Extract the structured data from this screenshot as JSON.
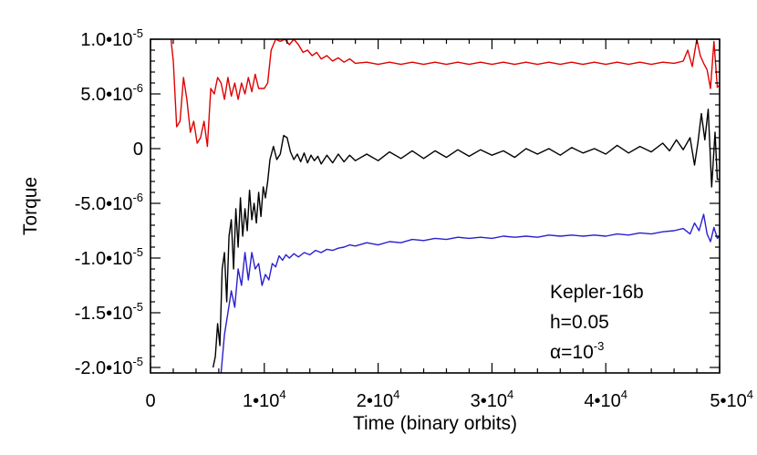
{
  "chart_data": {
    "type": "line",
    "title": "",
    "xlabel": "Time (binary orbits)",
    "ylabel": "Torque",
    "xlim": [
      0,
      50000
    ],
    "ylim": [
      -2.05e-05,
      1e-05
    ],
    "grid": false,
    "legend": "none",
    "x_ticks": [
      {
        "value": 0,
        "base": "0",
        "exp": ""
      },
      {
        "value": 10000,
        "base": "1•10",
        "exp": "4"
      },
      {
        "value": 20000,
        "base": "2•10",
        "exp": "4"
      },
      {
        "value": 30000,
        "base": "3•10",
        "exp": "4"
      },
      {
        "value": 40000,
        "base": "4•10",
        "exp": "4"
      },
      {
        "value": 50000,
        "base": "5•10",
        "exp": "4"
      }
    ],
    "y_ticks": [
      {
        "value": 1e-05,
        "base": "1.0•10",
        "exp": "-5"
      },
      {
        "value": 5e-06,
        "base": "5.0•10",
        "exp": "-6"
      },
      {
        "value": 0,
        "base": "0",
        "exp": ""
      },
      {
        "value": -5e-06,
        "base": "-5.0•10",
        "exp": "-6"
      },
      {
        "value": -1e-05,
        "base": "-1.0•10",
        "exp": "-5"
      },
      {
        "value": -1.5e-05,
        "base": "-1.5•10",
        "exp": "-5"
      },
      {
        "value": -2e-05,
        "base": "-2.0•10",
        "exp": "-5"
      }
    ],
    "annotations": [
      {
        "id": "system",
        "text": "Kepler-16b",
        "exp": ""
      },
      {
        "id": "aspect",
        "text": "h=0.05",
        "exp": ""
      },
      {
        "id": "viscosity",
        "text": "α=10",
        "exp": "-3"
      }
    ],
    "series": [
      {
        "color": "#e00000",
        "x": [
          1800,
          2000,
          2300,
          2600,
          2900,
          3200,
          3500,
          3800,
          4100,
          4400,
          4700,
          5000,
          5300,
          5600,
          5900,
          6200,
          6500,
          6800,
          7100,
          7400,
          7700,
          8000,
          8300,
          8600,
          8900,
          9200,
          9500,
          9800,
          10000,
          10300,
          10600,
          11000,
          11400,
          11800,
          12200,
          12600,
          13000,
          13400,
          13800,
          14200,
          14600,
          15000,
          15500,
          16000,
          16500,
          17000,
          17500,
          18000,
          19000,
          20000,
          21000,
          22000,
          23000,
          24000,
          25000,
          26000,
          27000,
          28000,
          29000,
          30000,
          31000,
          32000,
          33000,
          34000,
          35000,
          36000,
          37000,
          38000,
          39000,
          40000,
          41000,
          42000,
          43000,
          44000,
          45000,
          46000,
          46800,
          47200,
          47600,
          48000,
          48300,
          48600,
          48900,
          49200,
          49500,
          49800,
          50000
        ],
        "y": [
          1e-05,
          8e-06,
          2e-06,
          2.5e-06,
          6.5e-06,
          4.5e-06,
          1.5e-06,
          2.5e-06,
          5e-07,
          1e-06,
          2.5e-06,
          2e-07,
          5.5e-06,
          5e-06,
          6.5e-06,
          6e-06,
          4.5e-06,
          6.5e-06,
          4.8e-06,
          6e-06,
          4.5e-06,
          6e-06,
          5e-06,
          6.5e-06,
          5.2e-06,
          6.8e-06,
          5.5e-06,
          5.5e-06,
          5.5e-06,
          6e-06,
          9e-06,
          1e-05,
          9.8e-06,
          1e-05,
          9.5e-06,
          1e-05,
          9.5e-06,
          8.8e-06,
          9e-06,
          8.5e-06,
          8.8e-06,
          8.2e-06,
          8.5e-06,
          8e-06,
          8.3e-06,
          7.9e-06,
          8.2e-06,
          7.8e-06,
          7.9e-06,
          7.7e-06,
          7.9e-06,
          7.7e-06,
          7.9e-06,
          7.7e-06,
          7.9e-06,
          7.7e-06,
          7.9e-06,
          7.7e-06,
          7.9e-06,
          7.7e-06,
          7.9e-06,
          7.7e-06,
          7.9e-06,
          7.7e-06,
          7.9e-06,
          7.7e-06,
          7.9e-06,
          7.7e-06,
          7.9e-06,
          7.7e-06,
          7.9e-06,
          7.7e-06,
          7.9e-06,
          7.7e-06,
          7.9e-06,
          7.8e-06,
          8e-06,
          9e-06,
          7.5e-06,
          1e-05,
          8.5e-06,
          7.8e-06,
          7.2e-06,
          5.5e-06,
          9.8e-06,
          5.6e-06,
          5.8e-06
        ]
      },
      {
        "color": "#000000",
        "x": [
          5500,
          5700,
          5900,
          6100,
          6300,
          6500,
          6700,
          6900,
          7100,
          7300,
          7500,
          7700,
          7900,
          8100,
          8300,
          8500,
          8700,
          8900,
          9100,
          9300,
          9500,
          9700,
          9900,
          10100,
          10300,
          10500,
          10800,
          11100,
          11400,
          11700,
          12000,
          12300,
          12600,
          12900,
          13200,
          13500,
          13800,
          14100,
          14400,
          14700,
          15000,
          15500,
          16000,
          16500,
          17000,
          17500,
          18000,
          19000,
          20000,
          21000,
          22000,
          23000,
          24000,
          25000,
          26000,
          27000,
          28000,
          29000,
          30000,
          31000,
          32000,
          33000,
          34000,
          35000,
          36000,
          37000,
          38000,
          39000,
          40000,
          41000,
          42000,
          43000,
          44000,
          45000,
          45600,
          46200,
          46800,
          47400,
          47800,
          48100,
          48400,
          48700,
          49000,
          49300,
          49600,
          49800,
          50000
        ],
        "y": [
          -2e-05,
          -1.9e-05,
          -1.6e-05,
          -1.8e-05,
          -1.1e-05,
          -9.5e-06,
          -1.4e-05,
          -8e-06,
          -6.5e-06,
          -1.1e-05,
          -5.5e-06,
          -9e-06,
          -4.5e-06,
          -8e-06,
          -5.5e-06,
          -7.5e-06,
          -3.8e-06,
          -6.5e-06,
          -5e-06,
          -6.8e-06,
          -4e-06,
          -6.2e-06,
          -3.5e-06,
          -4.5e-06,
          -3e-06,
          -1e-06,
          2e-07,
          -1e-06,
          -5e-07,
          1.2e-06,
          1e-06,
          -3e-07,
          -1e-06,
          -5e-07,
          -1.2e-06,
          -4e-07,
          -1.3e-06,
          -6e-07,
          -1.1e-06,
          -7e-07,
          -1.4e-06,
          -6e-07,
          -1.3e-06,
          -5e-07,
          -1.2e-06,
          -6e-07,
          -1.1e-06,
          -5e-07,
          -1.1e-06,
          -3e-07,
          -9e-07,
          -2e-07,
          -9e-07,
          -2e-07,
          -8e-07,
          -1e-07,
          -7e-07,
          -1e-07,
          -6e-07,
          -2e-07,
          -8e-07,
          0,
          -5e-07,
          0,
          -6e-07,
          1e-07,
          -4e-07,
          0,
          -5e-07,
          3e-07,
          -4e-07,
          2e-07,
          -3e-07,
          5e-07,
          -2e-07,
          8e-07,
          -1e-07,
          1e-06,
          -1.5e-06,
          6e-07,
          3.2e-06,
          8e-07,
          3.6e-06,
          -3.5e-06,
          1.5e-06,
          -2.8e-06,
          -2.8e-06
        ]
      },
      {
        "color": "#2a1fcf",
        "x": [
          6200,
          6500,
          6800,
          7100,
          7400,
          7700,
          8000,
          8300,
          8600,
          8900,
          9200,
          9500,
          9800,
          10100,
          10400,
          10700,
          11000,
          11300,
          11600,
          11900,
          12200,
          12600,
          13000,
          13500,
          14000,
          14500,
          15000,
          15500,
          16000,
          16500,
          17000,
          17500,
          18000,
          19000,
          20000,
          21000,
          22000,
          23000,
          24000,
          25000,
          26000,
          27000,
          28000,
          29000,
          30000,
          31000,
          32000,
          33000,
          34000,
          35000,
          36000,
          37000,
          38000,
          39000,
          40000,
          41000,
          42000,
          43000,
          44000,
          45000,
          46000,
          46800,
          47400,
          47800,
          48200,
          48600,
          48900,
          49200,
          49500,
          49800,
          50000
        ],
        "y": [
          -2.05e-05,
          -1.7e-05,
          -1.5e-05,
          -1.3e-05,
          -1.45e-05,
          -1.1e-05,
          -1.25e-05,
          -9.5e-06,
          -1.2e-05,
          -9.5e-06,
          -1.1e-05,
          -1.05e-05,
          -1.25e-05,
          -1.15e-05,
          -1.2e-05,
          -1.05e-05,
          -1.08e-05,
          -9.8e-06,
          -1.02e-05,
          -9.7e-06,
          -1e-05,
          -9.6e-06,
          -9.9e-06,
          -9.5e-06,
          -9.7e-06,
          -9.3e-06,
          -9.5e-06,
          -9.2e-06,
          -9.3e-06,
          -9.1e-06,
          -9e-06,
          -8.8e-06,
          -8.9e-06,
          -8.6e-06,
          -8.8e-06,
          -8.5e-06,
          -8.6e-06,
          -8.3e-06,
          -8.4e-06,
          -8.2e-06,
          -8.3e-06,
          -8.1e-06,
          -8.2e-06,
          -8.1e-06,
          -8.2e-06,
          -8e-06,
          -8.1e-06,
          -8e-06,
          -8.1e-06,
          -7.9e-06,
          -8e-06,
          -7.9e-06,
          -8e-06,
          -7.9e-06,
          -8e-06,
          -7.8e-06,
          -7.9e-06,
          -7.7e-06,
          -7.8e-06,
          -7.6e-06,
          -7.5e-06,
          -7.3e-06,
          -7.8e-06,
          -6.8e-06,
          -7.5e-06,
          -6e-06,
          -7.8e-06,
          -8.5e-06,
          -7.2e-06,
          -8.2e-06,
          -8e-06
        ]
      }
    ]
  }
}
